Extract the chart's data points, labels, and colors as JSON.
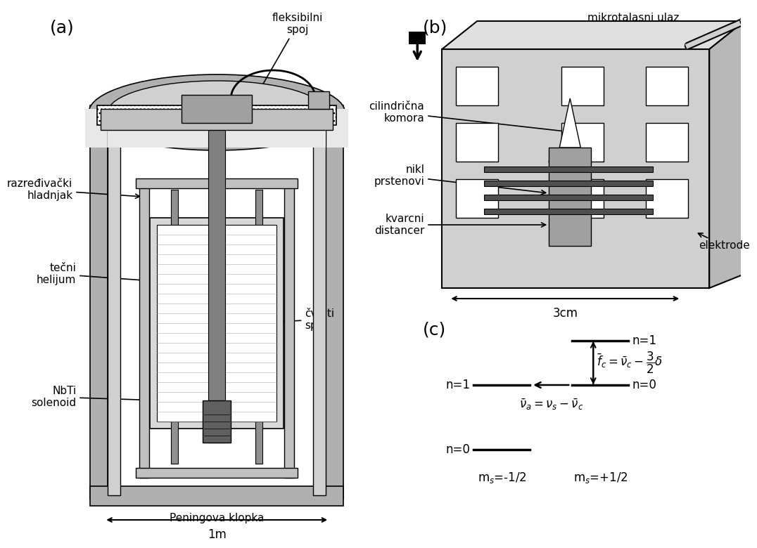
{
  "bg_color": "#ffffff",
  "panel_a_label": "(a)",
  "panel_b_label": "(b)",
  "panel_c_label": "(c)",
  "label_a_fleksibilni_spoj": "fleksibilni\nspoj",
  "label_a_razredjivacki": "razređivački\nhladnjak",
  "label_a_tecni": "tečni\nhelijum",
  "label_a_cvrsti": "čvrsti\nspoj",
  "label_a_NbTi": "NbTi\nsolenoid",
  "label_a_Penning": "Peningova klopka",
  "label_a_1m": "1m",
  "label_b_mikrotalasni": "mikrotalasni ulaz",
  "label_b_cilindr": "cilindrična\nkomora",
  "label_b_nikl": "nikl\nprstenovi",
  "label_b_kvarcni": "kvarcni\ndistancer",
  "label_b_elektrode": "elektrode",
  "label_b_3cm": "3cm",
  "label_c_n1_top": "n=1",
  "label_c_n0_mid": "n=0",
  "label_c_n1_left": "n=1",
  "label_c_n0_bot": "n=0",
  "label_c_ms_neg": "m$_s$=-1/2",
  "label_c_ms_pos": "m$_s$=+1/2",
  "text_color": "#000000",
  "line_color": "#000000"
}
